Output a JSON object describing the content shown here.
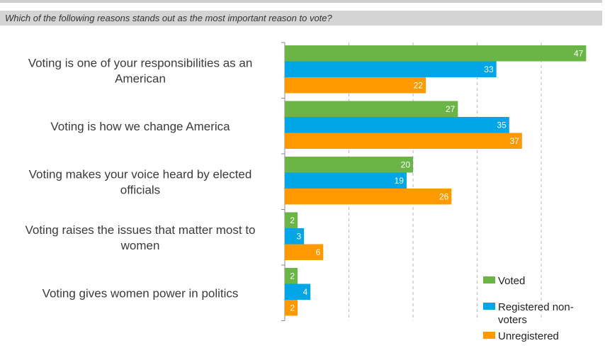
{
  "question": "Which of the following reasons stands out as the most important reason to vote?",
  "colors": {
    "voted": "#6ab545",
    "registered": "#00a6e6",
    "unregistered": "#ff9900"
  },
  "chart_data": {
    "type": "bar",
    "orientation": "horizontal",
    "title": "",
    "xlabel": "",
    "ylabel": "",
    "xlim": [
      0,
      50
    ],
    "grid": true,
    "legend_position": "bottom-right",
    "categories": [
      [
        "Voting is one of your responsibilities as an",
        "American"
      ],
      [
        "Voting is how we change America"
      ],
      [
        "Voting makes your voice heard by elected",
        "officials"
      ],
      [
        "Voting raises the issues that matter most to",
        "women"
      ],
      [
        "Voting gives women power in politics"
      ]
    ],
    "series": [
      {
        "name": "Voted",
        "values": [
          47,
          27,
          20,
          2,
          2
        ]
      },
      {
        "name": "Registered non-voters",
        "legend_lines": [
          "Registered non-",
          "voters"
        ],
        "values": [
          33,
          35,
          19,
          3,
          4
        ]
      },
      {
        "name": "Unregistered",
        "values": [
          22,
          37,
          26,
          6,
          2
        ]
      }
    ]
  }
}
